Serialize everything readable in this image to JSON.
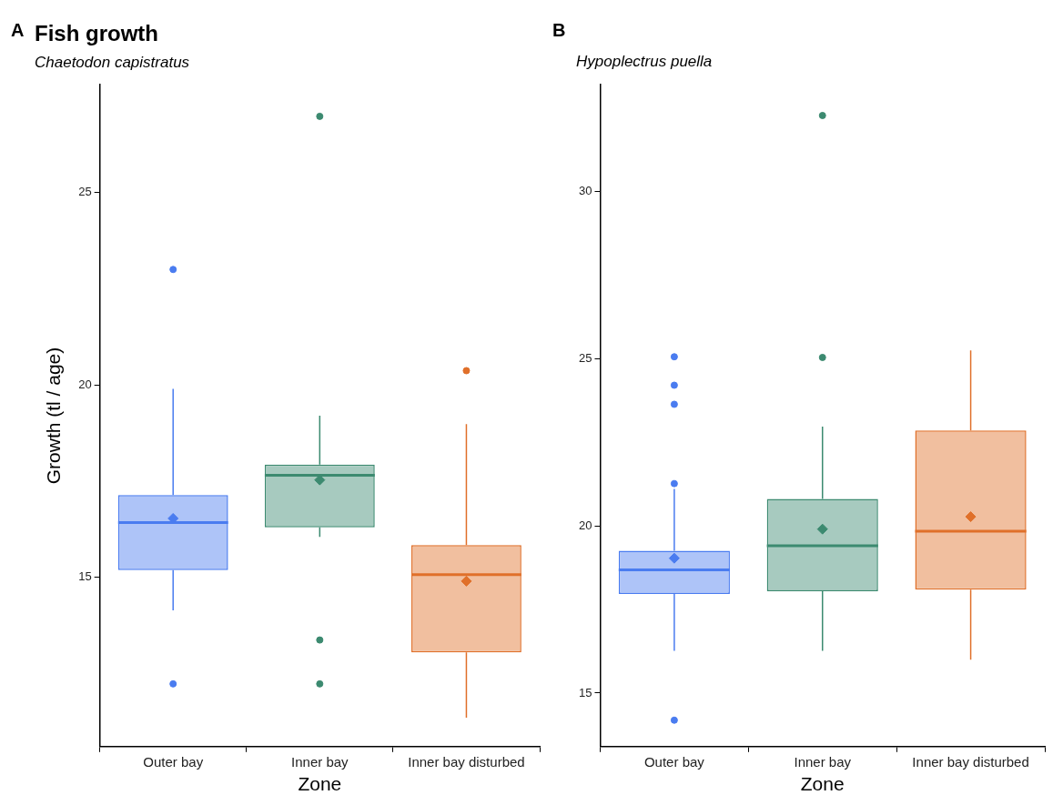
{
  "chart_data": [
    {
      "type": "box",
      "title": "Fish growth",
      "subtitle": "Chaetodon capistratus",
      "xlabel": "Zone",
      "ylabel": "Growth (tl / age)",
      "annotations": [
        "A"
      ],
      "categories": [
        "Outer bay",
        "Inner bay",
        "Inner bay disturbed"
      ],
      "ylim": [
        10.6,
        27.8
      ],
      "yticks": [
        15,
        20,
        25
      ],
      "grid": false,
      "legend": false,
      "marker": "circle",
      "colors": [
        "#4a7cf0",
        "#3c8a70",
        "#e0702a"
      ],
      "boxes": [
        {
          "low": 14.14,
          "q1": 15.19,
          "median": 16.42,
          "q3": 17.14,
          "high": 19.9,
          "mean": 16.53,
          "outliers": [
            23.0,
            12.23
          ]
        },
        {
          "low": 16.05,
          "q1": 16.3,
          "median": 17.65,
          "q3": 17.93,
          "high": 19.2,
          "mean": 17.53,
          "outliers": [
            26.98,
            13.37,
            12.23
          ]
        },
        {
          "low": 11.35,
          "q1": 13.05,
          "median": 15.07,
          "q3": 15.84,
          "high": 18.98,
          "mean": 14.9,
          "outliers": [
            20.37
          ]
        }
      ]
    },
    {
      "type": "box",
      "subtitle": "Hypoplectrus puella",
      "xlabel": "Zone",
      "annotations": [
        "B"
      ],
      "categories": [
        "Outer bay",
        "Inner bay",
        "Inner bay disturbed"
      ],
      "ylim": [
        13.4,
        33.2
      ],
      "yticks": [
        15,
        20,
        25,
        30
      ],
      "grid": false,
      "legend": false,
      "marker": "circle",
      "colors": [
        "#4a7cf0",
        "#3c8a70",
        "#e0702a"
      ],
      "boxes": [
        {
          "low": 16.26,
          "q1": 17.96,
          "median": 18.68,
          "q3": 19.25,
          "high": 21.1,
          "mean": 19.03,
          "outliers": [
            25.05,
            24.2,
            23.63,
            21.26,
            14.19
          ]
        },
        {
          "low": 16.26,
          "q1": 18.04,
          "median": 19.4,
          "q3": 20.8,
          "high": 22.96,
          "mean": 19.9,
          "outliers": [
            32.26,
            25.03
          ]
        },
        {
          "low": 16.0,
          "q1": 18.09,
          "median": 19.84,
          "q3": 22.85,
          "high": 25.24,
          "mean": 20.27
        }
      ]
    }
  ]
}
